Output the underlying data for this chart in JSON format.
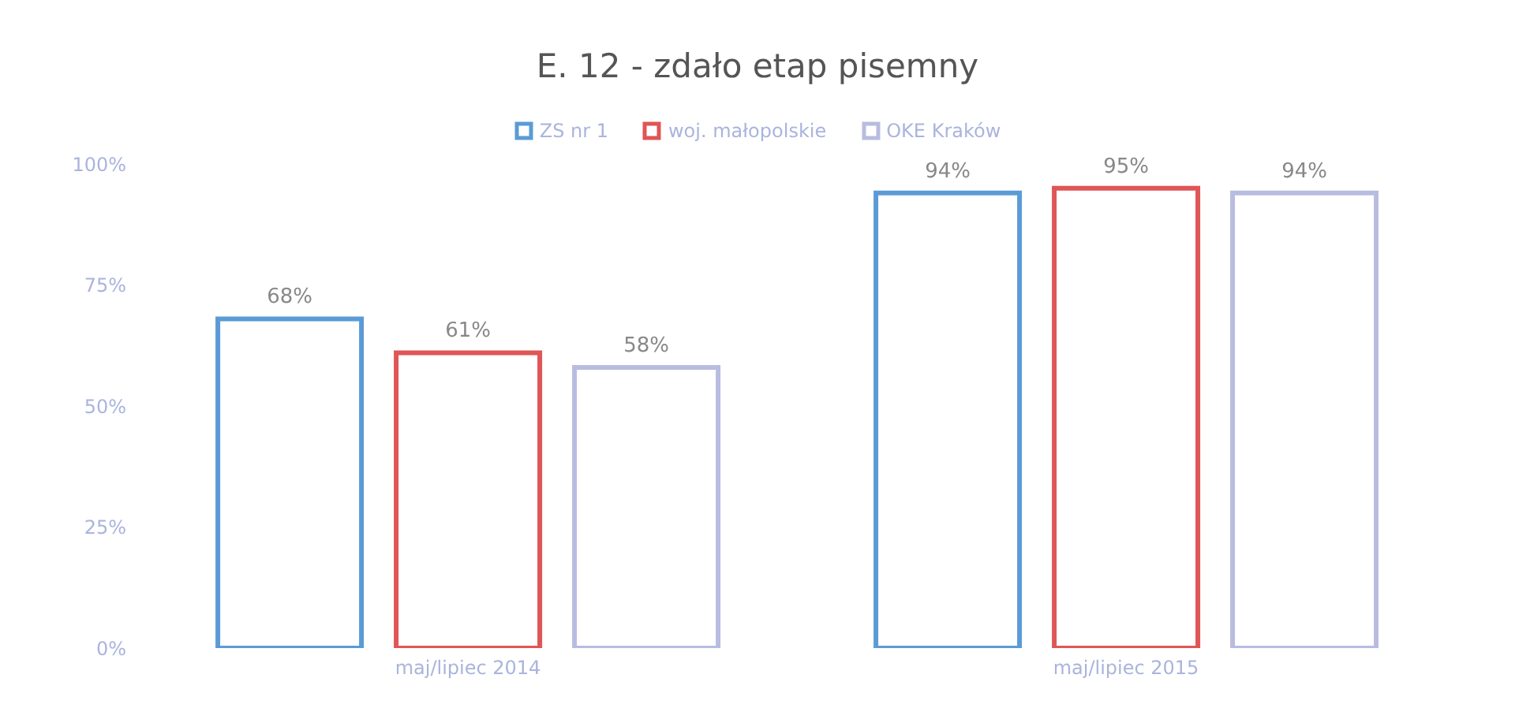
{
  "chart_data": {
    "type": "bar",
    "title": "E. 12 - zdało etap pisemny",
    "categories": [
      "maj/lipiec 2014",
      "maj/lipiec 2015"
    ],
    "series": [
      {
        "name": "ZS nr 1",
        "color": "#5b9bd5",
        "values": [
          68,
          94
        ],
        "value_labels": [
          "68%",
          "94%"
        ]
      },
      {
        "name": "woj. małopolskie",
        "color": "#e05555",
        "values": [
          61,
          95
        ],
        "value_labels": [
          "61%",
          "95%"
        ]
      },
      {
        "name": "OKE Kraków",
        "color": "#b8bce0",
        "values": [
          58,
          94
        ],
        "value_labels": [
          "58%",
          "94%"
        ]
      }
    ],
    "ylim": [
      0,
      100
    ],
    "yticks": [
      {
        "value": 0,
        "label": "0%"
      },
      {
        "value": 25,
        "label": "25%"
      },
      {
        "value": 50,
        "label": "50%"
      },
      {
        "value": 75,
        "label": "75%"
      },
      {
        "value": 100,
        "label": "100%"
      }
    ],
    "grid": false,
    "legend": "top"
  }
}
